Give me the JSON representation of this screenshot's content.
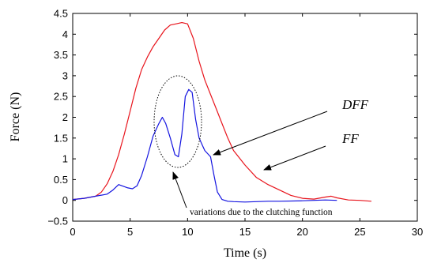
{
  "chart_data": {
    "type": "line",
    "xlabel": "Time (s)",
    "ylabel": "Force (N)",
    "xlim": [
      0,
      30
    ],
    "ylim": [
      -0.5,
      4.5
    ],
    "xticks": [
      0,
      5,
      10,
      15,
      20,
      25,
      30
    ],
    "yticks": [
      -0.5,
      0,
      0.5,
      1,
      1.5,
      2,
      2.5,
      3,
      3.5,
      4,
      4.5
    ],
    "xtick_labels": [
      "0",
      "5",
      "10",
      "15",
      "20",
      "25",
      "30"
    ],
    "ytick_labels": [
      "−0.5",
      "0",
      "0.5",
      "1",
      "1.5",
      "2",
      "2.5",
      "3",
      "3.5",
      "4",
      "4.5"
    ],
    "grid": false,
    "series": [
      {
        "name": "FF",
        "color": "#e8141c",
        "x": [
          0,
          1,
          2,
          2.5,
          3,
          3.5,
          4,
          4.5,
          5,
          5.5,
          6,
          6.5,
          7,
          7.5,
          8,
          8.5,
          9,
          9.5,
          10,
          10.5,
          11,
          11.5,
          12,
          12.5,
          13,
          13.5,
          14,
          15,
          16,
          17,
          18,
          19,
          20,
          21,
          22,
          22.5,
          23,
          24,
          25,
          26
        ],
        "y": [
          0.02,
          0.05,
          0.1,
          0.2,
          0.4,
          0.7,
          1.1,
          1.6,
          2.15,
          2.7,
          3.15,
          3.45,
          3.7,
          3.9,
          4.1,
          4.22,
          4.25,
          4.28,
          4.25,
          3.9,
          3.35,
          2.9,
          2.55,
          2.2,
          1.85,
          1.5,
          1.2,
          0.85,
          0.55,
          0.38,
          0.25,
          0.12,
          0.05,
          0.03,
          0.08,
          0.1,
          0.06,
          0.01,
          0.0,
          -0.02
        ]
      },
      {
        "name": "DFF",
        "color": "#1414e0",
        "x": [
          0,
          1,
          2,
          3,
          3.5,
          4,
          4.3,
          4.8,
          5.2,
          5.6,
          6,
          6.5,
          7,
          7.5,
          7.8,
          8.1,
          8.5,
          8.9,
          9.2,
          9.5,
          9.8,
          10.1,
          10.4,
          10.7,
          11,
          11.5,
          12,
          12.3,
          12.6,
          13,
          13.5,
          14,
          15,
          16,
          17,
          18,
          20,
          21,
          22,
          23
        ],
        "y": [
          0.02,
          0.05,
          0.1,
          0.15,
          0.25,
          0.38,
          0.35,
          0.3,
          0.28,
          0.35,
          0.6,
          1.05,
          1.55,
          1.85,
          2.0,
          1.85,
          1.5,
          1.1,
          1.05,
          1.6,
          2.5,
          2.67,
          2.6,
          1.95,
          1.5,
          1.2,
          1.05,
          0.6,
          0.2,
          0.02,
          -0.02,
          -0.03,
          -0.04,
          -0.03,
          -0.02,
          -0.02,
          -0.01,
          0.0,
          0.01,
          0.0
        ]
      }
    ],
    "annotations": {
      "dff_label": "DFF",
      "ff_label": "FF",
      "clutch_note": "variations due to the clutching function"
    }
  }
}
